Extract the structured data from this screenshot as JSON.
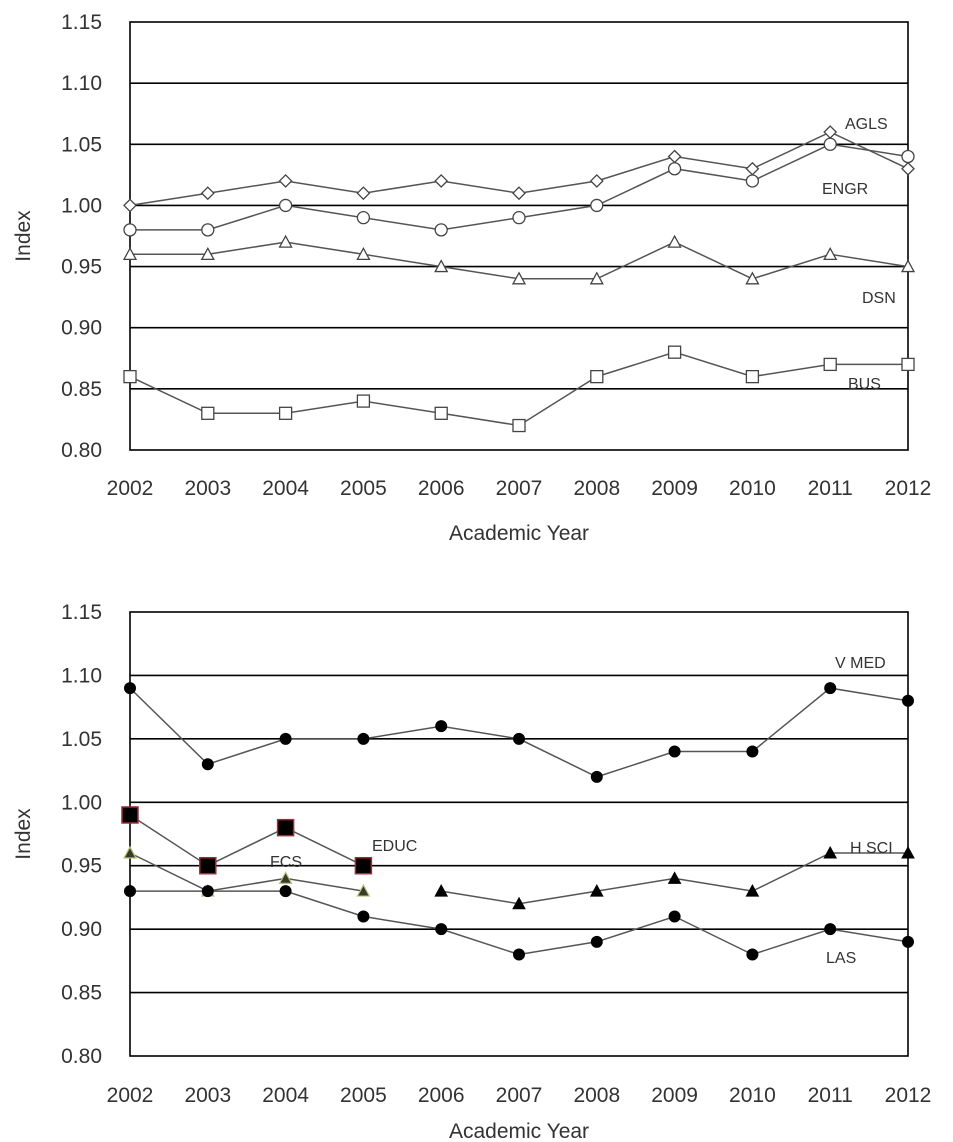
{
  "chart_data": [
    {
      "type": "line",
      "xlabel": "Academic Year",
      "ylabel": "Index",
      "ylim": [
        0.8,
        1.15
      ],
      "yticks": [
        "0.80",
        "0.85",
        "0.90",
        "0.95",
        "1.00",
        "1.05",
        "1.10",
        "1.15"
      ],
      "categories": [
        "2002",
        "2003",
        "2004",
        "2005",
        "2006",
        "2007",
        "2008",
        "2009",
        "2010",
        "2011",
        "2012"
      ],
      "grid": true,
      "series": [
        {
          "name": "AGLS",
          "marker": "diamond",
          "values": [
            1.0,
            1.01,
            1.02,
            1.01,
            1.02,
            1.01,
            1.02,
            1.04,
            1.03,
            1.06,
            1.03
          ]
        },
        {
          "name": "ENGR",
          "marker": "circle-open",
          "values": [
            0.98,
            0.98,
            1.0,
            0.99,
            0.98,
            0.99,
            1.0,
            1.03,
            1.02,
            1.05,
            1.04
          ]
        },
        {
          "name": "DSN",
          "marker": "triangle-open",
          "values": [
            0.96,
            0.96,
            0.97,
            0.96,
            0.95,
            0.94,
            0.94,
            0.97,
            0.94,
            0.96,
            0.95
          ]
        },
        {
          "name": "BUS",
          "marker": "square-open",
          "values": [
            0.86,
            0.83,
            0.83,
            0.84,
            0.83,
            0.82,
            0.86,
            0.88,
            0.86,
            0.87,
            0.87
          ]
        }
      ]
    },
    {
      "type": "line",
      "xlabel": "Academic Year",
      "ylabel": "Index",
      "ylim": [
        0.8,
        1.15
      ],
      "yticks": [
        "0.80",
        "0.85",
        "0.90",
        "0.95",
        "1.00",
        "1.05",
        "1.10",
        "1.15"
      ],
      "categories": [
        "2002",
        "2003",
        "2004",
        "2005",
        "2006",
        "2007",
        "2008",
        "2009",
        "2010",
        "2011",
        "2012"
      ],
      "grid": true,
      "series": [
        {
          "name": "V MED",
          "marker": "circle-filled",
          "values": [
            1.09,
            1.03,
            1.05,
            1.05,
            1.06,
            1.05,
            1.02,
            1.04,
            1.04,
            1.09,
            1.08
          ]
        },
        {
          "name": "EDUC",
          "marker": "square-big",
          "values": [
            0.99,
            0.95,
            0.98,
            0.95,
            null,
            null,
            null,
            null,
            null,
            null,
            null
          ]
        },
        {
          "name": "FCS",
          "marker": "triangle-olive",
          "values": [
            0.96,
            0.93,
            0.94,
            0.93,
            null,
            null,
            null,
            null,
            null,
            null,
            null
          ]
        },
        {
          "name": "H SCI",
          "marker": "triangle-filled",
          "values": [
            null,
            null,
            null,
            null,
            0.93,
            0.92,
            0.93,
            0.94,
            0.93,
            0.96,
            0.96
          ]
        },
        {
          "name": "LAS",
          "marker": "circle-filled",
          "values": [
            0.93,
            0.93,
            0.93,
            0.91,
            0.9,
            0.88,
            0.89,
            0.91,
            0.88,
            0.9,
            0.89
          ]
        }
      ]
    }
  ]
}
